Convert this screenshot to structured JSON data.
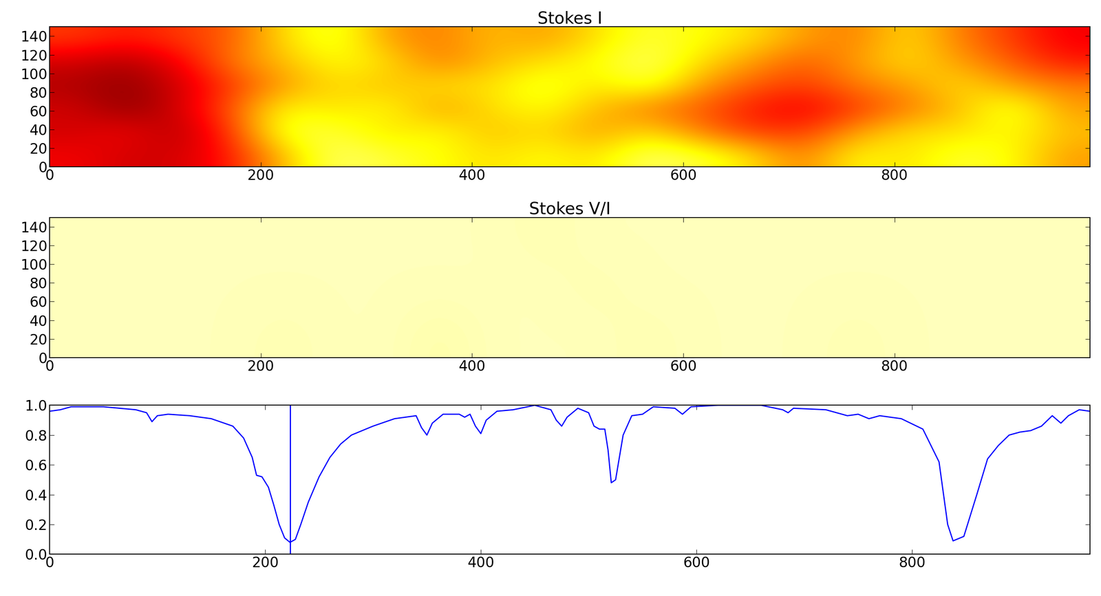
{
  "chart_data": [
    {
      "type": "heatmap",
      "title": "Stokes I",
      "color": "hot",
      "xlim": [
        0,
        985
      ],
      "ylim": [
        0,
        150
      ],
      "xticks": [
        0,
        200,
        400,
        600,
        800
      ],
      "yticks": [
        0,
        20,
        40,
        60,
        80,
        100,
        120,
        140
      ],
      "clim": [
        0,
        1
      ],
      "cells": [
        [
          0.35,
          0.3,
          0.3,
          0.4,
          0.65,
          0.85,
          0.8,
          0.75,
          0.7,
          0.75,
          0.7,
          0.85,
          0.8,
          0.7,
          0.55,
          0.75,
          0.7,
          0.8,
          0.75,
          0.6
        ],
        [
          0.3,
          0.35,
          0.25,
          0.45,
          0.8,
          0.8,
          0.7,
          0.75,
          0.65,
          0.7,
          0.6,
          0.7,
          0.55,
          0.45,
          0.45,
          0.6,
          0.7,
          0.7,
          0.75,
          0.65
        ],
        [
          0.3,
          0.2,
          0.3,
          0.5,
          0.75,
          0.7,
          0.75,
          0.6,
          0.7,
          0.75,
          0.65,
          0.55,
          0.5,
          0.4,
          0.35,
          0.45,
          0.55,
          0.65,
          0.8,
          0.6
        ],
        [
          0.25,
          0.2,
          0.3,
          0.45,
          0.6,
          0.7,
          0.65,
          0.7,
          0.7,
          0.8,
          0.7,
          0.8,
          0.6,
          0.5,
          0.45,
          0.55,
          0.6,
          0.7,
          0.6,
          0.55
        ],
        [
          0.3,
          0.25,
          0.35,
          0.55,
          0.65,
          0.75,
          0.7,
          0.55,
          0.65,
          0.7,
          0.75,
          0.85,
          0.7,
          0.6,
          0.5,
          0.6,
          0.7,
          0.6,
          0.5,
          0.4
        ],
        [
          0.45,
          0.4,
          0.45,
          0.5,
          0.7,
          0.8,
          0.6,
          0.55,
          0.65,
          0.6,
          0.7,
          0.8,
          0.75,
          0.7,
          0.6,
          0.55,
          0.7,
          0.55,
          0.45,
          0.35
        ]
      ]
    },
    {
      "type": "heatmap",
      "title": "Stokes V/I",
      "color": "hot",
      "xlim": [
        0,
        985
      ],
      "ylim": [
        0,
        150
      ],
      "xticks": [
        0,
        200,
        400,
        600,
        800
      ],
      "yticks": [
        0,
        20,
        40,
        60,
        80,
        100,
        120,
        140
      ],
      "clim": [
        0,
        1
      ],
      "cells": [
        [
          0.93,
          0.93,
          0.93,
          0.93,
          0.92,
          0.93,
          0.93,
          0.91,
          0.93,
          0.93,
          0.93,
          0.92,
          0.93,
          0.93,
          0.93,
          0.92,
          0.93,
          0.93,
          0.93,
          0.93
        ],
        [
          0.93,
          0.93,
          0.93,
          0.93,
          0.93,
          0.93,
          0.93,
          0.93,
          0.93,
          0.93,
          0.92,
          0.93,
          0.93,
          0.93,
          0.93,
          0.93,
          0.93,
          0.93,
          0.93,
          0.93
        ],
        [
          0.93,
          0.93,
          0.93,
          0.93,
          0.93,
          0.93,
          0.93,
          0.93,
          0.93,
          0.92,
          0.93,
          0.93,
          0.93,
          0.93,
          0.93,
          0.93,
          0.93,
          0.93,
          0.93,
          0.93
        ]
      ]
    },
    {
      "type": "line",
      "color": "#0000ff",
      "vline": 223,
      "xlim": [
        0,
        965
      ],
      "ylim": [
        0,
        1.0
      ],
      "xticks": [
        0,
        200,
        400,
        600,
        800
      ],
      "yticks": [
        {
          "value": 0.0,
          "label": "0.0"
        },
        0.2,
        0.4,
        0.6,
        0.8,
        {
          "value": 1.0,
          "label": "1.0"
        }
      ],
      "x": [
        0,
        10,
        20,
        50,
        80,
        90,
        95,
        100,
        110,
        130,
        150,
        170,
        180,
        188,
        192,
        197,
        203,
        208,
        213,
        218,
        223,
        228,
        233,
        240,
        250,
        260,
        270,
        280,
        300,
        320,
        340,
        345,
        350,
        355,
        365,
        380,
        385,
        390,
        395,
        400,
        405,
        415,
        430,
        450,
        465,
        470,
        475,
        480,
        490,
        500,
        505,
        510,
        515,
        518,
        521,
        525,
        532,
        540,
        550,
        560,
        580,
        587,
        595,
        620,
        660,
        680,
        685,
        690,
        720,
        740,
        750,
        760,
        770,
        790,
        810,
        825,
        833,
        838,
        848,
        860,
        870,
        880,
        890,
        900,
        910,
        920,
        930,
        938,
        945,
        955,
        965
      ],
      "values": [
        0.96,
        0.97,
        0.99,
        0.99,
        0.97,
        0.95,
        0.89,
        0.93,
        0.94,
        0.93,
        0.91,
        0.86,
        0.78,
        0.65,
        0.53,
        0.52,
        0.45,
        0.33,
        0.2,
        0.11,
        0.08,
        0.1,
        0.2,
        0.35,
        0.52,
        0.65,
        0.74,
        0.8,
        0.86,
        0.91,
        0.93,
        0.85,
        0.8,
        0.88,
        0.94,
        0.94,
        0.92,
        0.94,
        0.86,
        0.81,
        0.9,
        0.96,
        0.97,
        1.0,
        0.97,
        0.9,
        0.86,
        0.92,
        0.98,
        0.95,
        0.86,
        0.84,
        0.84,
        0.7,
        0.48,
        0.5,
        0.8,
        0.93,
        0.94,
        0.99,
        0.98,
        0.94,
        0.99,
        1.0,
        1.0,
        0.97,
        0.95,
        0.98,
        0.97,
        0.93,
        0.94,
        0.91,
        0.93,
        0.91,
        0.84,
        0.62,
        0.2,
        0.09,
        0.12,
        0.4,
        0.64,
        0.73,
        0.8,
        0.82,
        0.83,
        0.86,
        0.93,
        0.88,
        0.93,
        0.97,
        0.96
      ]
    }
  ]
}
